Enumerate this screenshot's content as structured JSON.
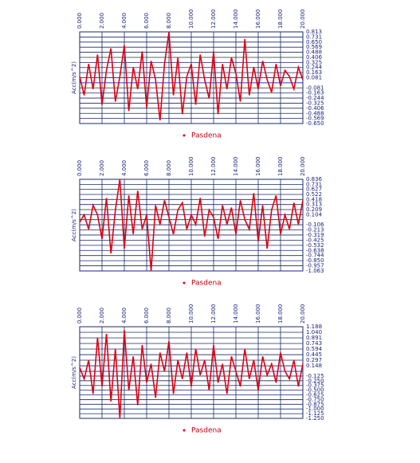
{
  "chart_data": [
    {
      "type": "line",
      "ylabel": "Acc(m/s^2)",
      "grid": true,
      "xlim": [
        0,
        20
      ],
      "ylim": [
        -0.65,
        0.813
      ],
      "xticks": [
        {
          "value": 0,
          "label": "0.000"
        },
        {
          "value": 2,
          "label": "2.000"
        },
        {
          "value": 4,
          "label": "4.000"
        },
        {
          "value": 6,
          "label": "6.000"
        },
        {
          "value": 8,
          "label": "8.000"
        },
        {
          "value": 10,
          "label": "10.000"
        },
        {
          "value": 12,
          "label": "12.000"
        },
        {
          "value": 14,
          "label": "14.000"
        },
        {
          "value": 16,
          "label": "16.000"
        },
        {
          "value": 18,
          "label": "18.000"
        },
        {
          "value": 20,
          "label": "20.000"
        }
      ],
      "yticks": [
        0.813,
        0.731,
        {
          "value": 0.65,
          "label": "0.650"
        },
        0.569,
        0.488,
        0.406,
        0.325,
        0.244,
        0.163,
        0.081,
        -0.081,
        -0.163,
        -0.244,
        -0.325,
        -0.406,
        -0.488,
        -0.569,
        {
          "value": -0.65,
          "label": "-0.650"
        }
      ],
      "x": [
        0,
        0.4,
        0.8,
        1.2,
        1.6,
        2,
        2.4,
        2.8,
        3.2,
        3.6,
        4,
        4.4,
        4.8,
        5.2,
        5.6,
        6,
        6.4,
        6.8,
        7.2,
        7.6,
        8,
        8.4,
        8.8,
        9.2,
        9.6,
        10,
        10.4,
        10.8,
        11.2,
        11.6,
        12,
        12.4,
        12.8,
        13.2,
        13.6,
        14,
        14.4,
        14.8,
        15.2,
        15.6,
        16,
        16.4,
        16.8,
        17.2,
        17.6,
        18,
        18.4,
        18.8,
        19.2,
        19.6,
        20
      ],
      "series": [
        {
          "name": "Pasdena",
          "color": "#e00010",
          "values": [
            0.1,
            -0.2,
            0.3,
            -0.1,
            0.45,
            -0.35,
            0.2,
            0.55,
            -0.3,
            0.1,
            0.6,
            -0.45,
            0.25,
            -0.1,
            0.5,
            -0.4,
            0.35,
            0.05,
            -0.6,
            0.3,
            0.81,
            -0.2,
            0.4,
            -0.5,
            0.1,
            0.3,
            -0.35,
            0.45,
            0.05,
            -0.25,
            0.5,
            -0.5,
            0.3,
            -0.1,
            0.4,
            0.15,
            -0.3,
            0.7,
            -0.2,
            0.25,
            -0.1,
            0.35,
            0.05,
            -0.15,
            0.3,
            -0.05,
            0.2,
            0.1,
            -0.1,
            0.25,
            0.05
          ]
        }
      ]
    },
    {
      "type": "line",
      "ylabel": "Acc(m/s^2)",
      "grid": true,
      "xlim": [
        0,
        20
      ],
      "ylim": [
        -1.063,
        0.836
      ],
      "xticks": [
        {
          "value": 0,
          "label": "0.000"
        },
        {
          "value": 2,
          "label": "2.000"
        },
        {
          "value": 4,
          "label": "4.000"
        },
        {
          "value": 6,
          "label": "6.000"
        },
        {
          "value": 8,
          "label": "8.000"
        },
        {
          "value": 10,
          "label": "10.000"
        },
        {
          "value": 12,
          "label": "12.000"
        },
        {
          "value": 14,
          "label": "14.000"
        },
        {
          "value": 16,
          "label": "16.000"
        },
        {
          "value": 18,
          "label": "18.000"
        },
        {
          "value": 20,
          "label": "20.000"
        }
      ],
      "yticks": [
        0.836,
        0.731,
        0.627,
        0.522,
        0.418,
        0.313,
        0.209,
        0.104,
        -0.106,
        -0.213,
        -0.319,
        -0.425,
        -0.532,
        -0.638,
        -0.744,
        {
          "value": -0.85,
          "label": "-0.850"
        },
        -0.957,
        -1.063
      ],
      "x": [
        0,
        0.4,
        0.8,
        1.2,
        1.6,
        2,
        2.4,
        2.8,
        3.2,
        3.6,
        4,
        4.4,
        4.8,
        5.2,
        5.6,
        6,
        6.4,
        6.8,
        7.2,
        7.6,
        8,
        8.4,
        8.8,
        9.2,
        9.6,
        10,
        10.4,
        10.8,
        11.2,
        11.6,
        12,
        12.4,
        12.8,
        13.2,
        13.6,
        14,
        14.4,
        14.8,
        15.2,
        15.6,
        16,
        16.4,
        16.8,
        17.2,
        17.6,
        18,
        18.4,
        18.8,
        19.2,
        19.6,
        20
      ],
      "series": [
        {
          "name": "Pasdena",
          "color": "#e00010",
          "values": [
            -0.05,
            0.1,
            -0.2,
            0.3,
            0.1,
            -0.4,
            0.45,
            -0.7,
            0.2,
            0.84,
            -0.6,
            0.5,
            -0.3,
            0.6,
            -0.2,
            0.1,
            -1.06,
            0.3,
            -0.1,
            0.4,
            0.05,
            -0.3,
            0.2,
            0.35,
            -0.2,
            0.1,
            -0.1,
            0.45,
            -0.35,
            0.2,
            0.05,
            -0.4,
            0.3,
            -0.1,
            0.25,
            -0.3,
            0.4,
            0.0,
            -0.2,
            0.55,
            -0.45,
            0.3,
            -0.6,
            0.2,
            0.5,
            -0.3,
            0.1,
            -0.2,
            0.35,
            -0.1,
            0.4
          ]
        }
      ]
    },
    {
      "type": "line",
      "ylabel": "Acc(m/s^2)",
      "grid": true,
      "xlim": [
        0,
        20
      ],
      "ylim": [
        -1.25,
        1.188
      ],
      "xticks": [
        {
          "value": 0,
          "label": "0.000"
        },
        {
          "value": 2,
          "label": "2.000"
        },
        {
          "value": 4,
          "label": "4.000"
        },
        {
          "value": 6,
          "label": "6.000"
        },
        {
          "value": 8,
          "label": "8.000"
        },
        {
          "value": 10,
          "label": "10.000"
        },
        {
          "value": 12,
          "label": "12.000"
        },
        {
          "value": 14,
          "label": "14.000"
        },
        {
          "value": 16,
          "label": "16.000"
        },
        {
          "value": 18,
          "label": "18.000"
        },
        {
          "value": 20,
          "label": "20.000"
        }
      ],
      "yticks": [
        1.188,
        {
          "value": 1.04,
          "label": "1.040"
        },
        0.891,
        0.743,
        0.594,
        0.445,
        0.297,
        0.148,
        -0.125,
        {
          "value": -0.25,
          "label": "-0.250"
        },
        -0.375,
        {
          "value": -0.5,
          "label": "-0.500"
        },
        -0.625,
        {
          "value": -0.75,
          "label": "-0.750"
        },
        -0.875,
        {
          "value": -1,
          "label": "-1.000"
        },
        -1.125,
        {
          "value": -1.25,
          "label": "-1.250"
        }
      ],
      "x": [
        0,
        0.4,
        0.8,
        1.2,
        1.6,
        2,
        2.4,
        2.8,
        3.2,
        3.6,
        4,
        4.4,
        4.8,
        5.2,
        5.6,
        6,
        6.4,
        6.8,
        7.2,
        7.6,
        8,
        8.4,
        8.8,
        9.2,
        9.6,
        10,
        10.4,
        10.8,
        11.2,
        11.6,
        12,
        12.4,
        12.8,
        13.2,
        13.6,
        14,
        14.4,
        14.8,
        15.2,
        15.6,
        16,
        16.4,
        16.8,
        17.2,
        17.6,
        18,
        18.4,
        18.8,
        19.2,
        19.6,
        20
      ],
      "series": [
        {
          "name": "Pasdena",
          "color": "#e00010",
          "values": [
            0.1,
            -0.2,
            0.3,
            -0.6,
            0.9,
            -0.4,
            1.0,
            -0.8,
            0.6,
            -1.25,
            1.1,
            -0.5,
            0.4,
            -0.9,
            0.7,
            -0.3,
            0.2,
            -0.7,
            0.5,
            0.0,
            0.8,
            -0.6,
            0.3,
            -0.2,
            0.5,
            -0.4,
            0.6,
            -0.1,
            0.3,
            -0.5,
            0.7,
            -0.3,
            0.2,
            -0.6,
            0.4,
            0.0,
            -0.4,
            0.6,
            -0.2,
            0.3,
            -0.5,
            0.4,
            -0.1,
            0.2,
            -0.3,
            0.5,
            0.0,
            -0.2,
            0.3,
            -0.4,
            0.2
          ]
        }
      ]
    }
  ]
}
